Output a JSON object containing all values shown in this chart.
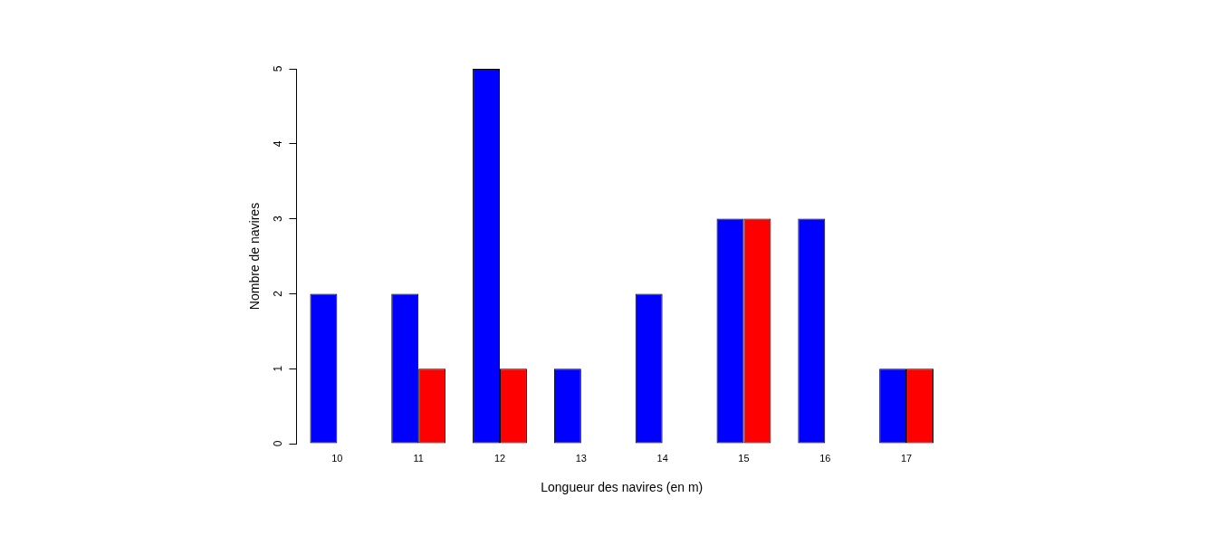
{
  "chart_data": {
    "type": "bar",
    "xlabel": "Longueur des navires (en m)",
    "ylabel": "Nombre de navires",
    "categories": [
      "10",
      "11",
      "12",
      "13",
      "14",
      "15",
      "16",
      "17"
    ],
    "series": [
      {
        "color": "#0000ff",
        "values": [
          2,
          2,
          5,
          1,
          2,
          3,
          3,
          1
        ]
      },
      {
        "color": "#ff0000",
        "values": [
          0,
          1,
          1,
          0,
          0,
          3,
          0,
          1
        ]
      }
    ],
    "ylim": [
      0,
      5
    ],
    "yticks": [
      0,
      1,
      2,
      3,
      4,
      5
    ]
  }
}
